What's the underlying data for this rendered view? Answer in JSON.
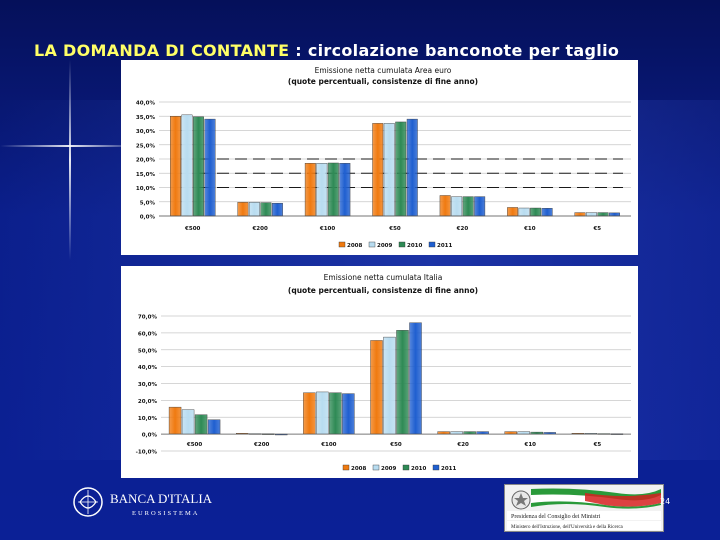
{
  "slide": {
    "title_main": "LA DOMANDA DI CONTANTE",
    "title_rest": " : circolazione banconote per taglio",
    "page_number": "24"
  },
  "footer": {
    "bank_name": "BANCA D'ITALIA",
    "bank_sub": "EUROSISTEMA",
    "gov_line1": "Presidenza del Consiglio dei Ministri",
    "gov_line2": "Ministero dell'Istruzione, dell'Università e della Ricerca"
  },
  "colors": {
    "s2008": "#f07a10",
    "s2009": "#b8dcf0",
    "s2010": "#2e8a55",
    "s2011": "#1f5fd0",
    "grid": "#c8c8c8",
    "dash": "#1a1a1a"
  },
  "chart_data": [
    {
      "type": "bar",
      "title": "Emissione netta cumulata Area euro",
      "subtitle": "(quote percentuali, consistenze di fine anno)",
      "categories": [
        "€500",
        "€200",
        "€100",
        "€50",
        "€20",
        "€10",
        "€5"
      ],
      "series": [
        {
          "name": "2008",
          "values": [
            35.0,
            4.8,
            18.5,
            32.5,
            7.2,
            3.0,
            1.2
          ]
        },
        {
          "name": "2009",
          "values": [
            35.5,
            4.8,
            18.5,
            32.5,
            6.8,
            2.8,
            1.2
          ]
        },
        {
          "name": "2010",
          "values": [
            34.8,
            4.7,
            18.6,
            33.0,
            6.8,
            2.8,
            1.2
          ]
        },
        {
          "name": "2011",
          "values": [
            34.0,
            4.5,
            18.5,
            34.0,
            6.8,
            2.7,
            1.1
          ]
        }
      ],
      "ylim": [
        0,
        40
      ],
      "yticks": [
        "0,0%",
        "5,0%",
        "10,0%",
        "15,0%",
        "20,0%",
        "25,0%",
        "30,0%",
        "35,0%",
        "40,0%"
      ],
      "ytick_values": [
        0,
        5,
        10,
        15,
        20,
        25,
        30,
        35,
        40
      ],
      "dashed_levels": [
        10,
        15,
        20
      ],
      "legend": "bottom"
    },
    {
      "type": "bar",
      "title": "Emissione netta cumulata Italia",
      "subtitle": "(quote percentuali, consistenze di fine anno)",
      "categories": [
        "€500",
        "€200",
        "€100",
        "€50",
        "€20",
        "€10",
        "€5"
      ],
      "series": [
        {
          "name": "2008",
          "values": [
            16.0,
            0.5,
            24.5,
            55.5,
            1.5,
            1.5,
            0.5
          ]
        },
        {
          "name": "2009",
          "values": [
            14.5,
            0.3,
            25.0,
            57.5,
            1.5,
            1.5,
            0.5
          ]
        },
        {
          "name": "2010",
          "values": [
            11.5,
            0.2,
            24.5,
            61.5,
            1.5,
            1.2,
            0.3
          ]
        },
        {
          "name": "2011",
          "values": [
            8.5,
            -0.5,
            24.0,
            66.0,
            1.5,
            1.0,
            0.2
          ]
        }
      ],
      "ylim": [
        -10,
        70
      ],
      "yticks": [
        "-10,0%",
        "0,0%",
        "10,0%",
        "20,0%",
        "30,0%",
        "40,0%",
        "50,0%",
        "60,0%",
        "70,0%"
      ],
      "ytick_values": [
        -10,
        0,
        10,
        20,
        30,
        40,
        50,
        60,
        70
      ],
      "legend": "bottom"
    }
  ]
}
